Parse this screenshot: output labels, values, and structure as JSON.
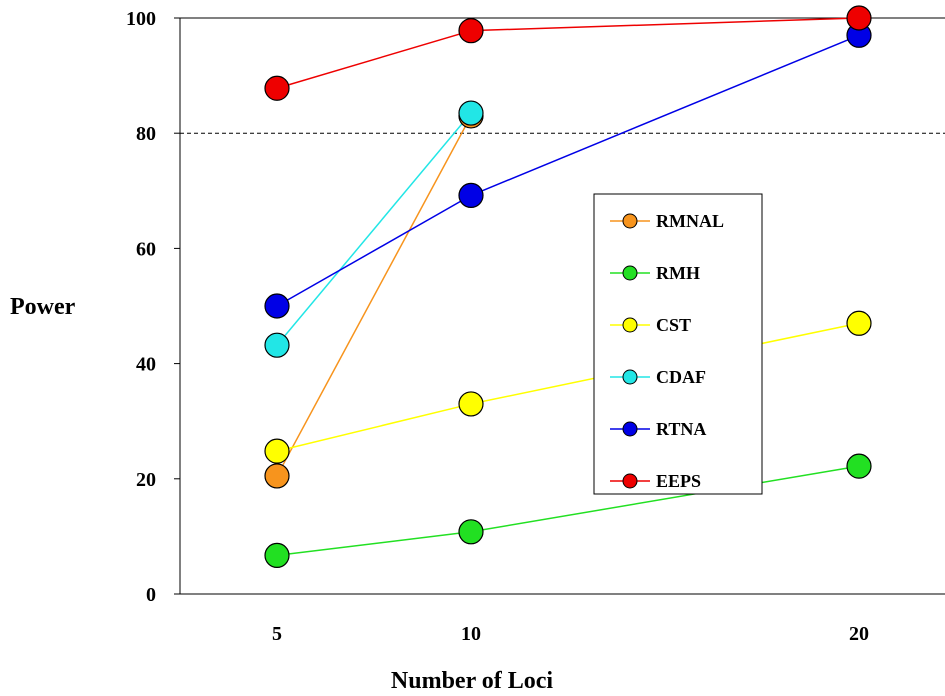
{
  "chart_data": {
    "type": "line",
    "title": "",
    "xlabel": "Number of Loci",
    "ylabel": "Power",
    "x": [
      5,
      10,
      20
    ],
    "x_tick_labels": [
      "5",
      "10",
      "20"
    ],
    "y_ticks": [
      0,
      20,
      40,
      60,
      80,
      100
    ],
    "y_tick_labels": [
      "0",
      "20",
      "40",
      "60",
      "80",
      "100"
    ],
    "ylim": [
      0,
      100
    ],
    "grid": false,
    "reference_line": {
      "y": 80,
      "style": "dashed"
    },
    "legend_position": "center-right",
    "series": [
      {
        "name": "RMNAL",
        "color": "#f7941d",
        "values": [
          20.5,
          83,
          null
        ]
      },
      {
        "name": "RMH",
        "color": "#22e022",
        "values": [
          6.7,
          10.8,
          22.2
        ]
      },
      {
        "name": "CST",
        "color": "#ffff00",
        "values": [
          24.8,
          33,
          47
        ]
      },
      {
        "name": "CDAF",
        "color": "#22e6e6",
        "values": [
          43.2,
          83.5,
          null
        ]
      },
      {
        "name": "RTNA",
        "color": "#0000e6",
        "values": [
          50,
          69.2,
          97
        ]
      },
      {
        "name": "EEPS",
        "color": "#ee0000",
        "values": [
          87.8,
          97.8,
          100
        ]
      }
    ]
  }
}
